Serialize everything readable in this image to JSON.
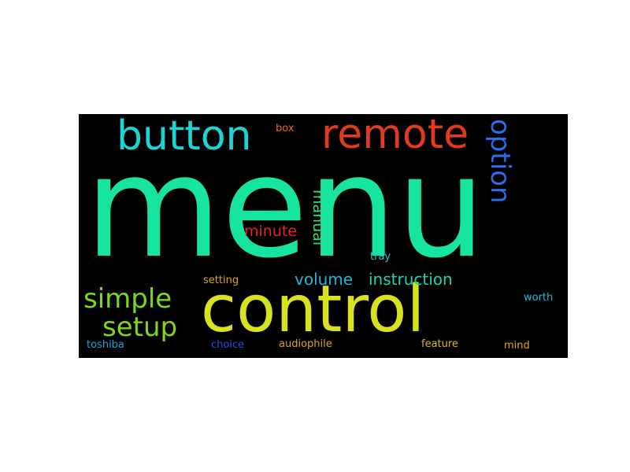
{
  "wordcloud": {
    "words": [
      {
        "key": "menu",
        "text": "menu",
        "color": "#17E59E"
      },
      {
        "key": "control",
        "text": "control",
        "color": "#D9E21E"
      },
      {
        "key": "button",
        "text": "button",
        "color": "#1BD4D4"
      },
      {
        "key": "remote",
        "text": "remote",
        "color": "#E23A1E"
      },
      {
        "key": "option",
        "text": "option",
        "color": "#2D6BE8"
      },
      {
        "key": "simple",
        "text": "simple",
        "color": "#7BD81C"
      },
      {
        "key": "setup",
        "text": "setup",
        "color": "#82D41C"
      },
      {
        "key": "volume",
        "text": "volume",
        "color": "#1BB8D6"
      },
      {
        "key": "instruction",
        "text": "instruction",
        "color": "#19D6B4"
      },
      {
        "key": "minute",
        "text": "minute",
        "color": "#E2271E"
      },
      {
        "key": "manual",
        "text": "manual",
        "color": "#2EE07A"
      },
      {
        "key": "box",
        "text": "box",
        "color": "#E86A1E"
      },
      {
        "key": "tray",
        "text": "tray",
        "color": "#1EC8D8"
      },
      {
        "key": "setting",
        "text": "setting",
        "color": "#D8A81E"
      },
      {
        "key": "worth",
        "text": "worth",
        "color": "#1EBBD8"
      },
      {
        "key": "toshiba",
        "text": "toshiba",
        "color": "#1EA6D8"
      },
      {
        "key": "choice",
        "text": "choice",
        "color": "#2A4FE6"
      },
      {
        "key": "audiophile",
        "text": "audiophile",
        "color": "#D8A81E"
      },
      {
        "key": "feature",
        "text": "feature",
        "color": "#D8B81E"
      },
      {
        "key": "mind",
        "text": "mind",
        "color": "#E8A21E"
      }
    ]
  }
}
